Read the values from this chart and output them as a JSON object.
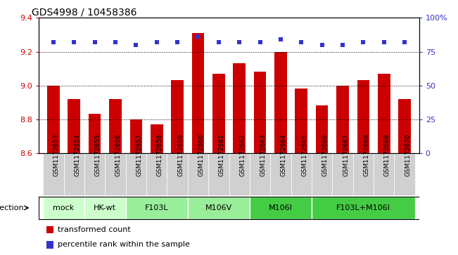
{
  "title": "GDS4998 / 10458386",
  "samples": [
    "GSM1172653",
    "GSM1172654",
    "GSM1172655",
    "GSM1172656",
    "GSM1172657",
    "GSM1172658",
    "GSM1172659",
    "GSM1172660",
    "GSM1172661",
    "GSM1172662",
    "GSM1172663",
    "GSM1172664",
    "GSM1172665",
    "GSM1172666",
    "GSM1172667",
    "GSM1172668",
    "GSM1172669",
    "GSM1172670"
  ],
  "transformed_counts": [
    9.0,
    8.92,
    8.83,
    8.92,
    8.8,
    8.77,
    9.03,
    9.31,
    9.07,
    9.13,
    9.08,
    9.2,
    8.98,
    8.88,
    9.0,
    9.03,
    9.07,
    8.92
  ],
  "percentile_ranks": [
    82,
    82,
    82,
    82,
    80,
    82,
    82,
    86,
    82,
    82,
    82,
    84,
    82,
    80,
    80,
    82,
    82,
    82
  ],
  "ylim": [
    8.6,
    9.4
  ],
  "ylim_right": [
    0,
    100
  ],
  "yticks_left": [
    8.6,
    8.8,
    9.0,
    9.2,
    9.4
  ],
  "yticks_right": [
    0,
    25,
    50,
    75,
    100
  ],
  "bar_color": "#cc0000",
  "dot_color": "#3333cc",
  "groups": [
    {
      "label": "mock",
      "start": 0,
      "end": 2,
      "color": "#ccffcc"
    },
    {
      "label": "HK-wt",
      "start": 2,
      "end": 4,
      "color": "#ccffcc"
    },
    {
      "label": "F103L",
      "start": 4,
      "end": 7,
      "color": "#99ee99"
    },
    {
      "label": "M106V",
      "start": 7,
      "end": 10,
      "color": "#99ee99"
    },
    {
      "label": "M106I",
      "start": 10,
      "end": 13,
      "color": "#44cc44"
    },
    {
      "label": "F103L+M106I",
      "start": 13,
      "end": 18,
      "color": "#44cc44"
    }
  ],
  "infection_label": "infection",
  "legend_items": [
    {
      "color": "#cc0000",
      "label": "transformed count"
    },
    {
      "color": "#3333cc",
      "label": "percentile rank within the sample"
    }
  ]
}
